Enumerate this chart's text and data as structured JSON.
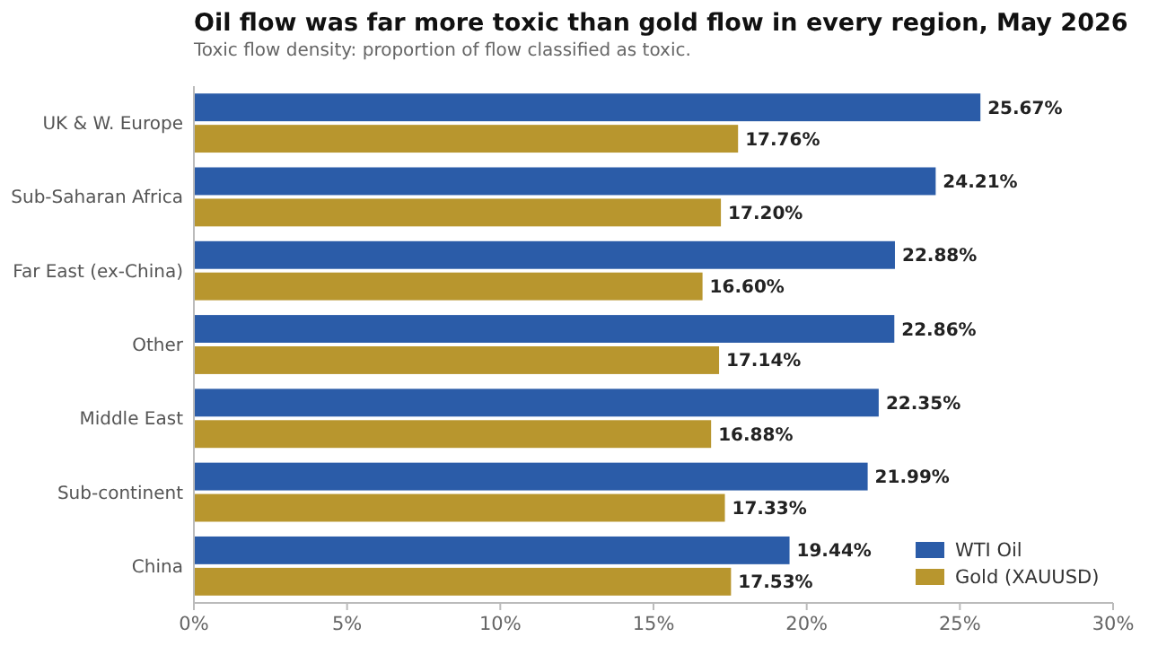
{
  "chart_data": {
    "type": "bar",
    "orientation": "horizontal",
    "title": "Oil flow was far more toxic than gold flow in every region, May 2026",
    "subtitle": "Toxic flow density: proportion of flow classified as toxic.",
    "categories": [
      "UK & W. Europe",
      "Sub-Saharan Africa",
      "Far East (ex-China)",
      "Other",
      "Middle East",
      "Sub-continent",
      "China"
    ],
    "series": [
      {
        "name": "WTI Oil",
        "color": "#2b5ca8",
        "values": [
          25.67,
          24.21,
          22.88,
          22.86,
          22.35,
          21.99,
          19.44
        ],
        "value_labels": [
          "25.67%",
          "24.21%",
          "22.88%",
          "22.86%",
          "22.35%",
          "21.99%",
          "19.44%"
        ]
      },
      {
        "name": "Gold (XAUUSD)",
        "color": "#b8962e",
        "values": [
          17.76,
          17.2,
          16.6,
          17.14,
          16.88,
          17.33,
          17.53
        ],
        "value_labels": [
          "17.76%",
          "17.20%",
          "16.60%",
          "17.14%",
          "16.88%",
          "17.33%",
          "17.53%"
        ]
      }
    ],
    "xlim": [
      0,
      30
    ],
    "xticks": [
      {
        "value": 0,
        "label": "0%"
      },
      {
        "value": 5,
        "label": "5%"
      },
      {
        "value": 10,
        "label": "10%"
      },
      {
        "value": 15,
        "label": "15%"
      },
      {
        "value": 20,
        "label": "20%"
      },
      {
        "value": 25,
        "label": "25%"
      },
      {
        "value": 30,
        "label": "30%"
      }
    ],
    "legend": "bottom right",
    "grid": false
  }
}
